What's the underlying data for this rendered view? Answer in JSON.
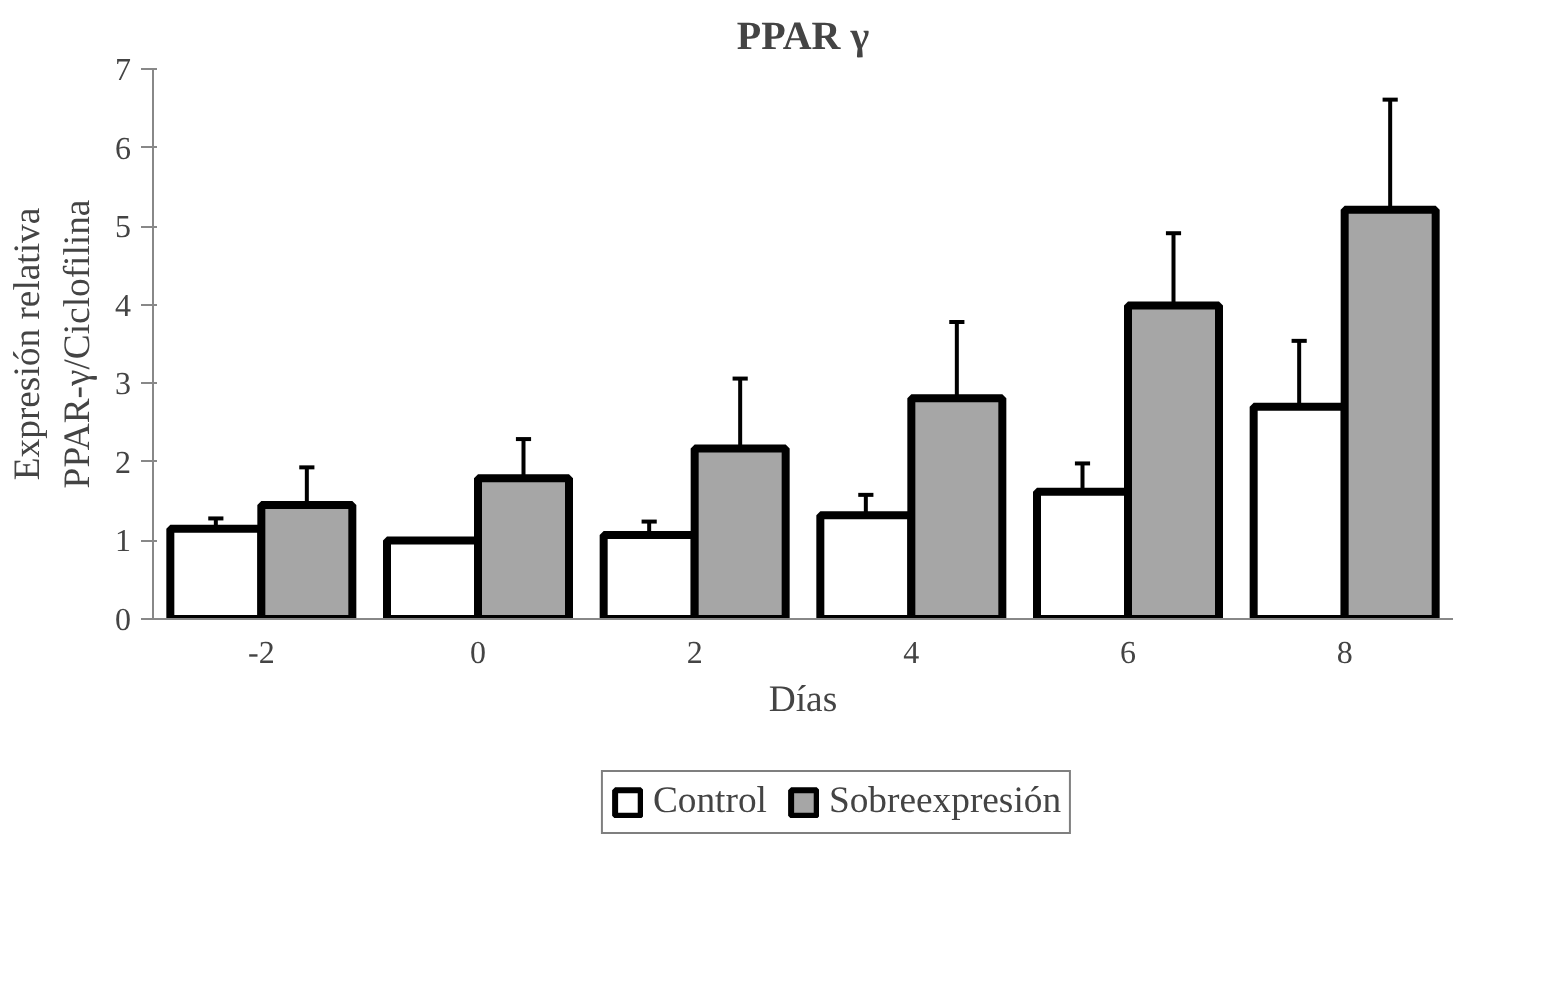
{
  "chart_data": {
    "type": "bar",
    "title": "PPAR γ",
    "xlabel": "Días",
    "ylabel": "Expresión relativa\nPPAR-γ/Ciclofilina",
    "categories": [
      "-2",
      "0",
      "2",
      "4",
      "6",
      "8"
    ],
    "series": [
      {
        "name": "Control",
        "color": "#ffffff",
        "values": [
          1.15,
          1.0,
          1.07,
          1.32,
          1.62,
          2.7
        ],
        "errors": [
          [
            1.15,
            1.28
          ],
          null,
          [
            1.07,
            1.24
          ],
          [
            1.32,
            1.58
          ],
          [
            1.62,
            1.98
          ],
          [
            2.7,
            3.54
          ]
        ]
      },
      {
        "name": "Sobreexpresión",
        "color": "#a6a6a6",
        "values": [
          1.45,
          1.79,
          2.17,
          2.81,
          3.99,
          5.21
        ],
        "errors": [
          [
            1.45,
            1.93
          ],
          [
            1.79,
            2.29
          ],
          [
            2.17,
            3.06
          ],
          [
            2.81,
            3.78
          ],
          [
            3.99,
            4.91
          ],
          [
            5.21,
            6.61
          ]
        ]
      }
    ],
    "ylim": [
      0,
      7
    ],
    "yticks": [
      0,
      1,
      2,
      3,
      4,
      5,
      6,
      7
    ],
    "grid": false,
    "legend": "bottom"
  }
}
